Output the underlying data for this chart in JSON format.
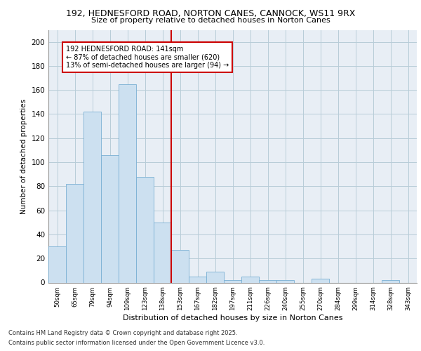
{
  "title1": "192, HEDNESFORD ROAD, NORTON CANES, CANNOCK, WS11 9RX",
  "title2": "Size of property relative to detached houses in Norton Canes",
  "xlabel": "Distribution of detached houses by size in Norton Canes",
  "ylabel": "Number of detached properties",
  "categories": [
    "50sqm",
    "65sqm",
    "79sqm",
    "94sqm",
    "109sqm",
    "123sqm",
    "138sqm",
    "153sqm",
    "167sqm",
    "182sqm",
    "197sqm",
    "211sqm",
    "226sqm",
    "240sqm",
    "255sqm",
    "270sqm",
    "284sqm",
    "299sqm",
    "314sqm",
    "328sqm",
    "343sqm"
  ],
  "values": [
    30,
    82,
    142,
    106,
    165,
    88,
    50,
    27,
    5,
    9,
    2,
    5,
    2,
    2,
    0,
    3,
    0,
    0,
    0,
    2,
    0
  ],
  "bar_color": "#cce0f0",
  "bar_edge_color": "#7ab0d4",
  "vline_x": 6.5,
  "vline_color": "#cc0000",
  "annotation_text": "192 HEDNESFORD ROAD: 141sqm\n← 87% of detached houses are smaller (620)\n13% of semi-detached houses are larger (94) →",
  "annotation_box_color": "#ffffff",
  "annotation_box_edge": "#cc0000",
  "ylim": [
    0,
    210
  ],
  "yticks": [
    0,
    20,
    40,
    60,
    80,
    100,
    120,
    140,
    160,
    180,
    200
  ],
  "background_color": "#e8eef5",
  "footer1": "Contains HM Land Registry data © Crown copyright and database right 2025.",
  "footer2": "Contains public sector information licensed under the Open Government Licence v3.0."
}
